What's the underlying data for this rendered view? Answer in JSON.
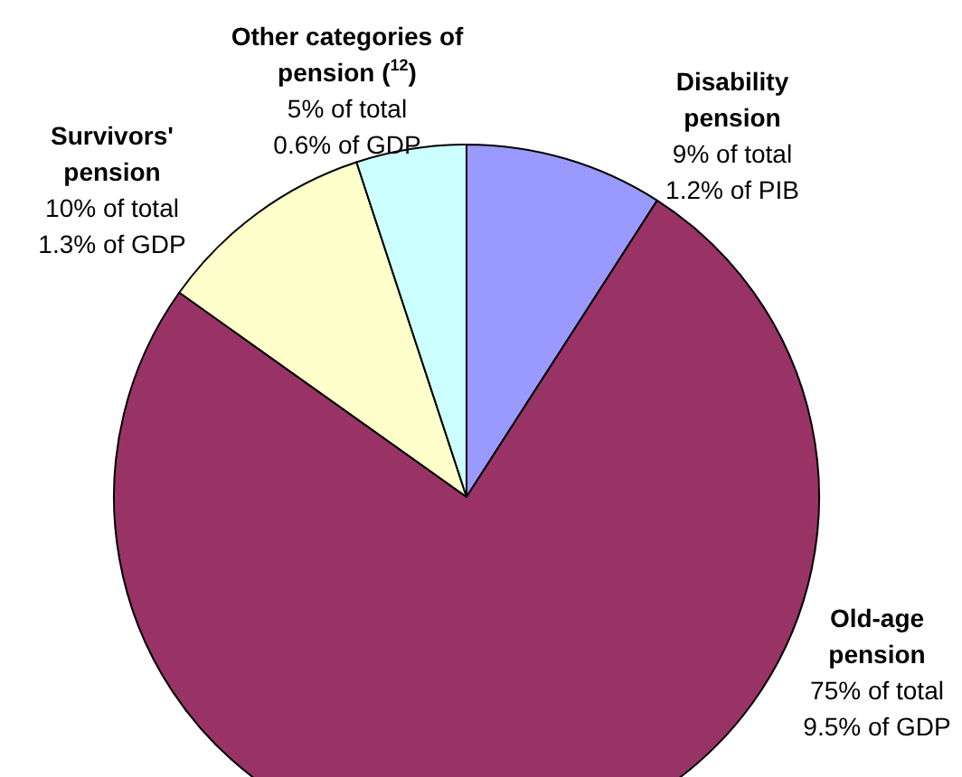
{
  "chart_data": {
    "type": "pie",
    "categories": [
      "Disability pension",
      "Old-age pension",
      "Survivors' pension",
      "Other categories of pension ($^{12}$)"
    ],
    "values": [
      9,
      75,
      10,
      5
    ],
    "colors": [
      "#9999ff",
      "#993366",
      "#ffffcc",
      "#ccffff"
    ],
    "value_labels": [
      "9% of total\n1.2% of PIB",
      "75% of total\n9.5% of GDP",
      "10% of total\n1.3% of GDP",
      "5% of total\n0.6% of GDP"
    ],
    "legend": false
  }
}
